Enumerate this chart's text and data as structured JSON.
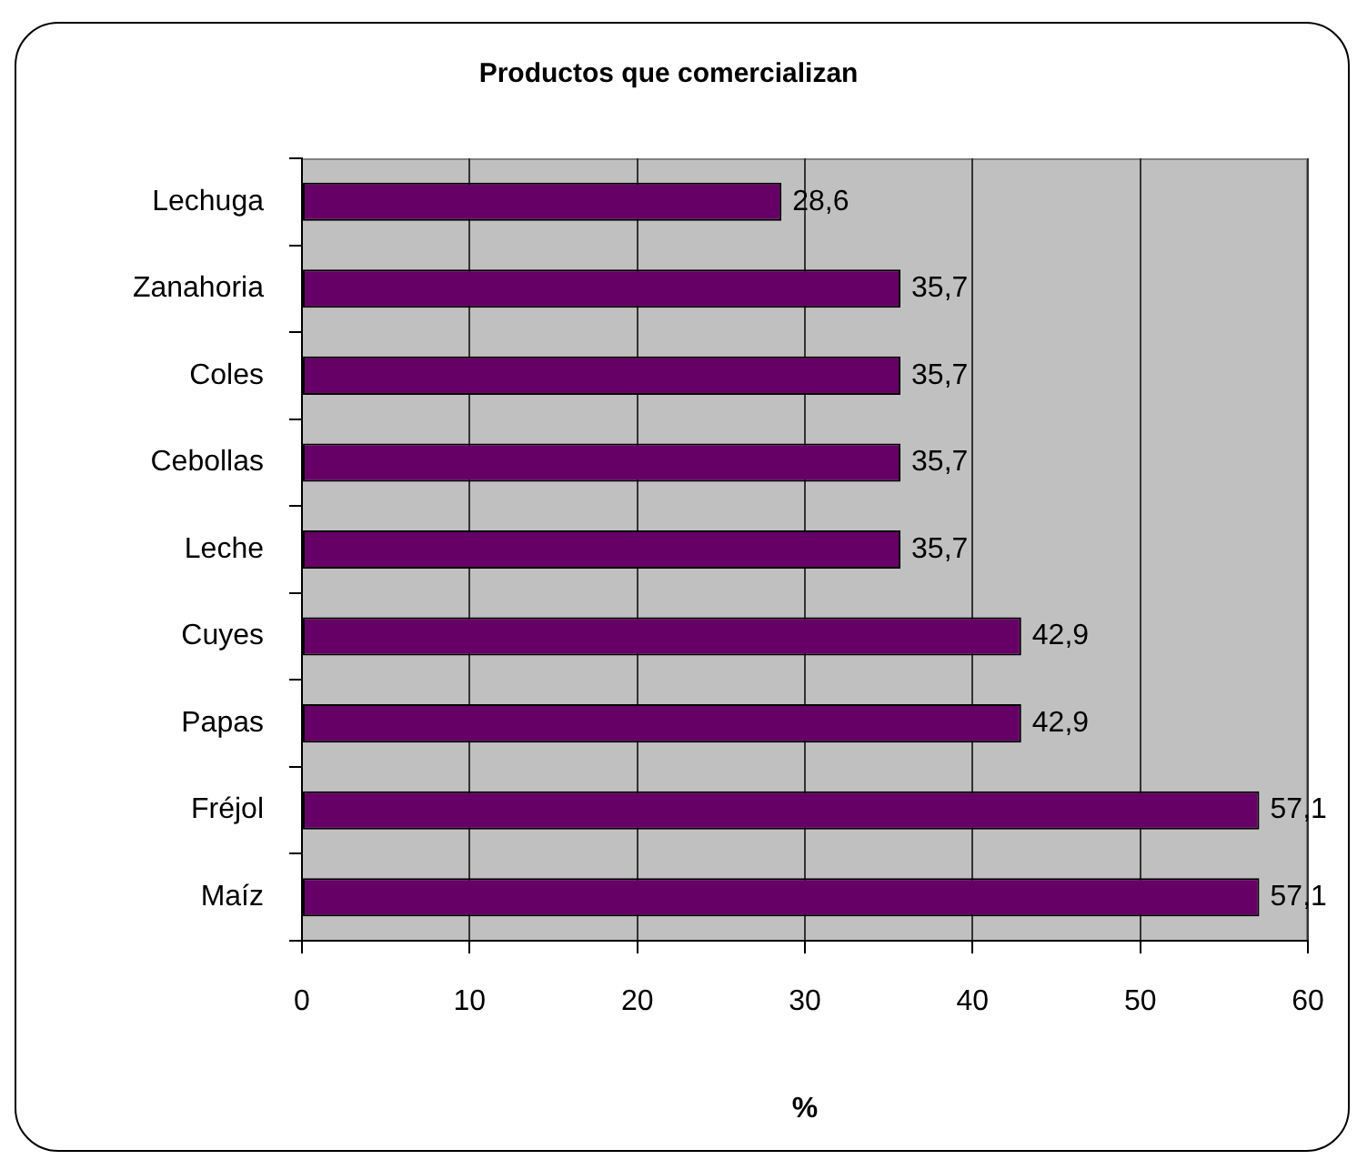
{
  "chart_data": {
    "type": "bar",
    "orientation": "horizontal",
    "title": "Productos que comercializan",
    "xlabel": "%",
    "categories": [
      "Lechuga",
      "Zanahoria",
      "Coles",
      "Cebollas",
      "Leche",
      "Cuyes",
      "Papas",
      "Fréjol",
      "Maíz"
    ],
    "values": [
      28.6,
      35.7,
      35.7,
      35.7,
      35.7,
      42.9,
      42.9,
      57.1,
      57.1
    ],
    "value_labels": [
      "28,6",
      "35,7",
      "35,7",
      "35,7",
      "35,7",
      "42,9",
      "42,9",
      "57,1",
      "57,1"
    ],
    "color": "#660066",
    "xlim": [
      0,
      60
    ],
    "xticks": [
      0,
      10,
      20,
      30,
      40,
      50,
      60
    ],
    "grid": "x",
    "legend": false
  }
}
